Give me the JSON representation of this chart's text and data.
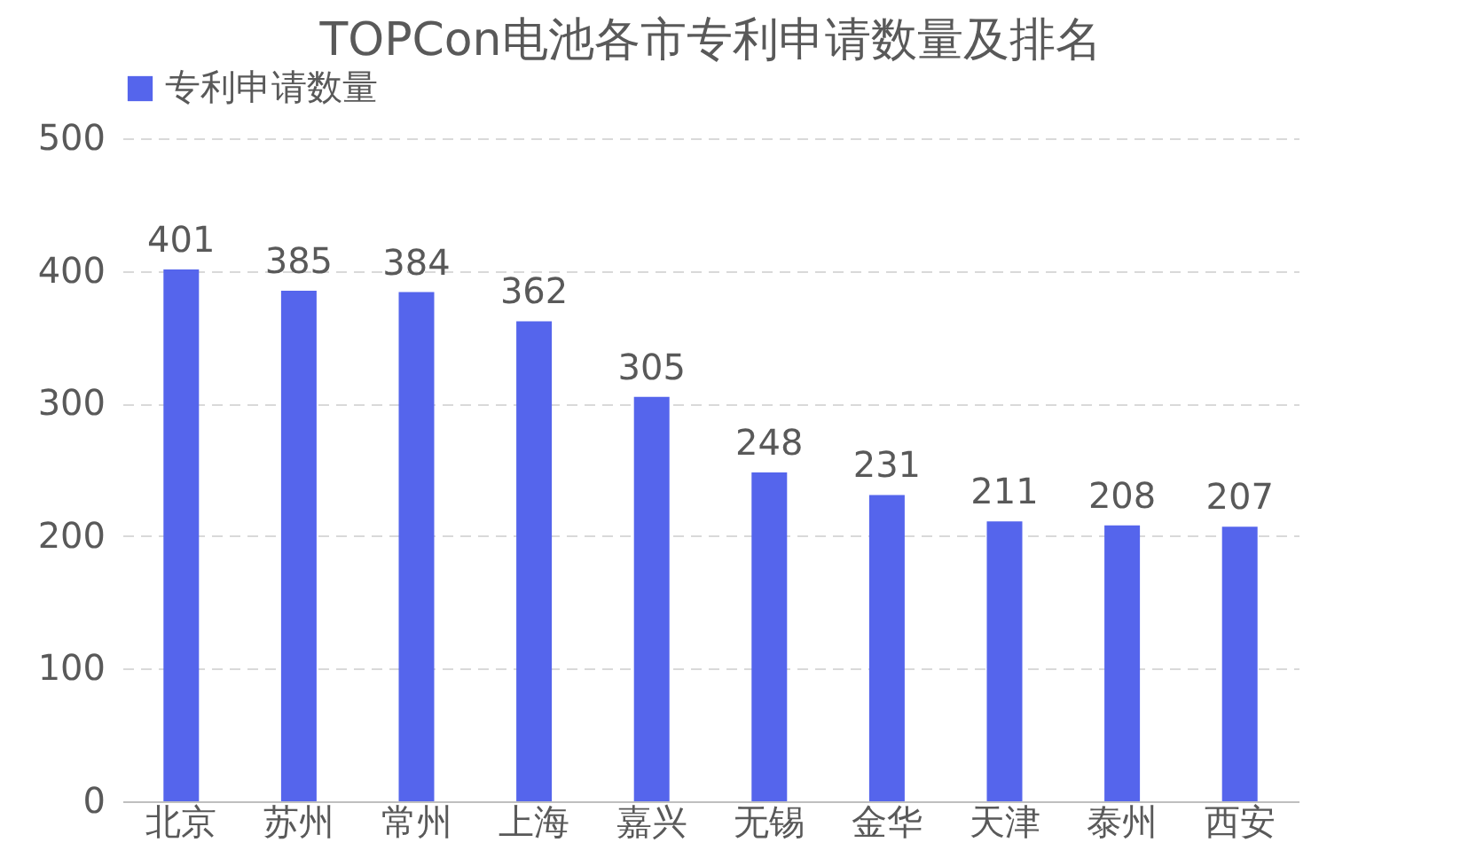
{
  "chart_data": {
    "type": "bar",
    "title": "TOPCon电池各市专利申请数量及排名",
    "categories": [
      "北京",
      "苏州",
      "常州",
      "上海",
      "嘉兴",
      "无锡",
      "金华",
      "天津",
      "泰州",
      "西安"
    ],
    "series": [
      {
        "name": "专利申请数量",
        "color": "#5565ec",
        "values": [
          401,
          385,
          384,
          362,
          305,
          248,
          231,
          211,
          208,
          207
        ]
      }
    ],
    "ylim": [
      0,
      500
    ],
    "yticks": [
      0,
      100,
      200,
      300,
      400,
      500
    ],
    "grid": "y",
    "legend": "top",
    "data_labels": true
  }
}
